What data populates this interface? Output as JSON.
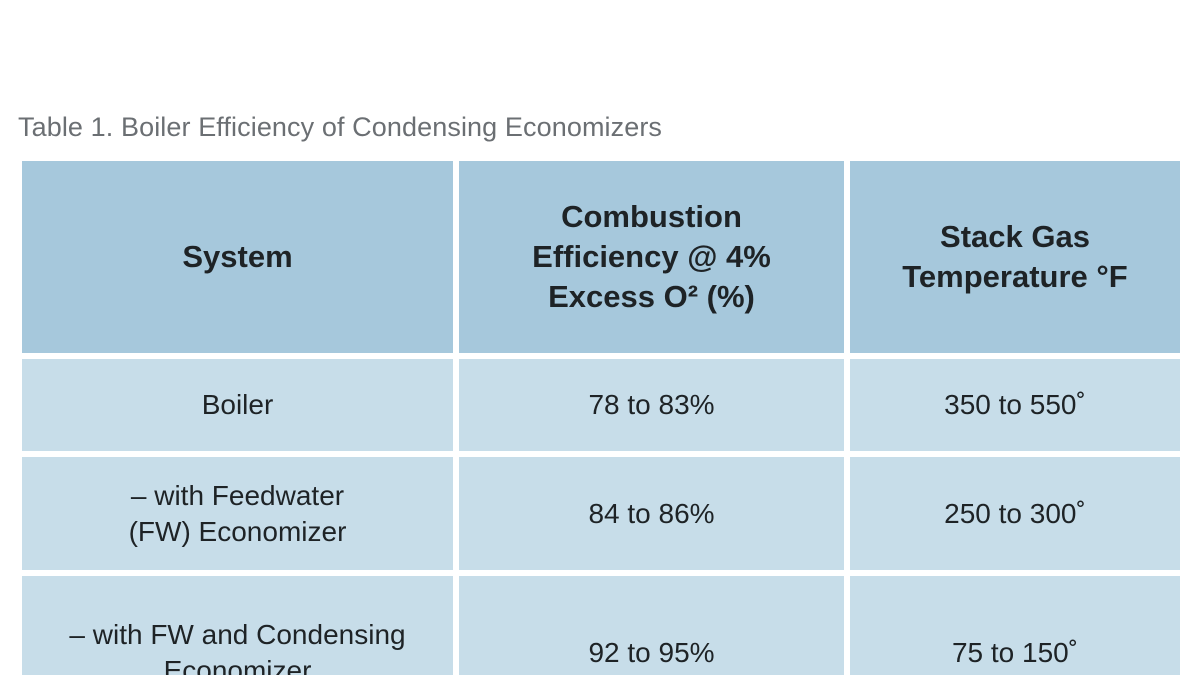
{
  "caption": "Table 1. Boiler Efficiency of Condensing Economizers",
  "table": {
    "headers": [
      "System",
      "Combustion\nEfficiency @ 4%\nExcess O² (%)",
      "Stack Gas\nTemperature °F"
    ],
    "rows": [
      [
        "Boiler",
        "78 to 83%",
        "350 to 550˚"
      ],
      [
        "– with Feedwater\n(FW) Economizer",
        "84 to 86%",
        "250 to 300˚"
      ],
      [
        "– with FW and Condensing\nEconomizer",
        "92 to 95%",
        "75 to 150˚"
      ]
    ]
  },
  "colors": {
    "header_bg": "#a6c8dc",
    "cell_bg": "#c7dde9",
    "text": "#1e2326",
    "caption_text": "#6b6f73"
  }
}
